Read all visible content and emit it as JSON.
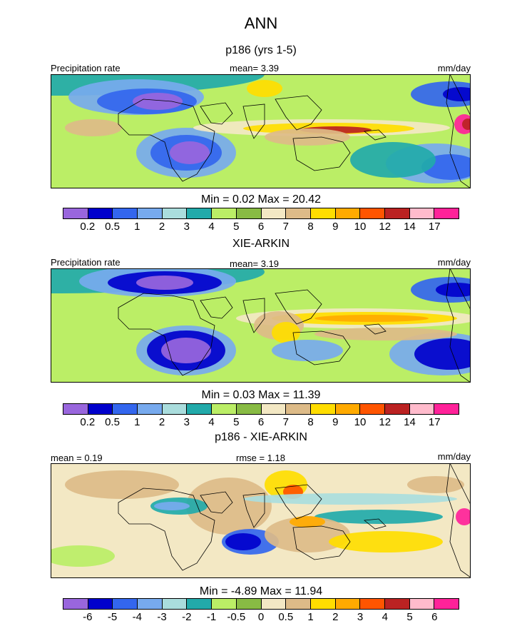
{
  "figure": {
    "season": "ANN",
    "colors_abs": [
      "#9966dd",
      "#0000cc",
      "#3366ee",
      "#77aaee",
      "#aadddd",
      "#22aaaa",
      "#bbee66",
      "#88bb44",
      "#f3e8c4",
      "#ddbb88",
      "#ffdd00",
      "#ffaa00",
      "#ff5500",
      "#bb2222",
      "#ffbbcc",
      "#ff2299"
    ],
    "colors_diff": [
      "#9966dd",
      "#0000cc",
      "#3366ee",
      "#77aaee",
      "#aadddd",
      "#22aaaa",
      "#bbee66",
      "#88bb44",
      "#f3e8c4",
      "#ddbb88",
      "#ffdd00",
      "#ffaa00",
      "#ff5500",
      "#bb2222",
      "#ffbbcc",
      "#ff2299"
    ]
  },
  "chart_data": [
    {
      "type": "heatmap",
      "title": "p186 (yrs 1-5)",
      "left_label": "Precipitation rate",
      "mean_text": "mean=   3.39",
      "units": "mm/day",
      "min": 0.02,
      "max": 20.42,
      "minmax_text": "Min =   0.02 Max =  20.42",
      "levels": [
        "0.2",
        "0.5",
        "1",
        "2",
        "3",
        "4",
        "5",
        "6",
        "7",
        "8",
        "9",
        "10",
        "12",
        "14",
        "17"
      ],
      "background_level_index": 6
    },
    {
      "type": "heatmap",
      "title": "XIE-ARKIN",
      "left_label": "Precipitation rate",
      "mean_text": "mean=   3.19",
      "units": "mm/day",
      "min": 0.03,
      "max": 11.39,
      "minmax_text": "Min =   0.03 Max =  11.39",
      "levels": [
        "0.2",
        "0.5",
        "1",
        "2",
        "3",
        "4",
        "5",
        "6",
        "7",
        "8",
        "9",
        "10",
        "12",
        "14",
        "17"
      ],
      "background_level_index": 6
    },
    {
      "type": "heatmap",
      "title": "p186 - XIE-ARKIN",
      "left_label": "mean =   0.19",
      "mean_text": "rmse =   1.18",
      "units": "mm/day",
      "min": -4.89,
      "max": 11.94,
      "minmax_text": "Min =   -4.89 Max =  11.94",
      "levels": [
        "-6",
        "-5",
        "-4",
        "-3",
        "-2",
        "-1",
        "-0.5",
        "0",
        "0.5",
        "1",
        "2",
        "3",
        "4",
        "5",
        "6"
      ],
      "background_level_index": 8
    }
  ]
}
